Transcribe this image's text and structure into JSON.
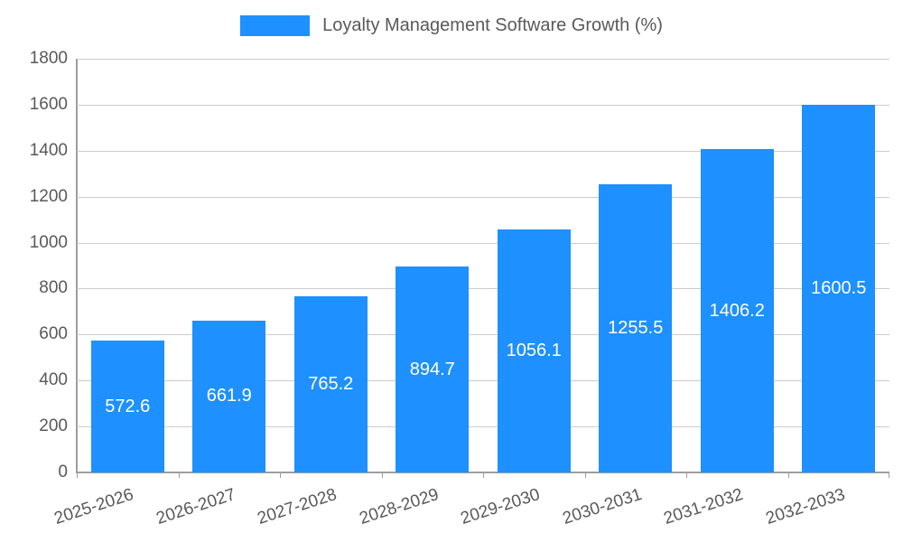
{
  "chart_data": {
    "type": "bar",
    "title": "Loyalty Management Software Growth (%)",
    "categories": [
      "2025-2026",
      "2026-2027",
      "2027-2028",
      "2028-2029",
      "2029-2030",
      "2030-2031",
      "2031-2032",
      "2032-2033"
    ],
    "values": [
      572.6,
      661.9,
      765.2,
      894.7,
      1056.1,
      1255.5,
      1406.2,
      1600.5
    ],
    "value_labels": [
      "572.6",
      "661.9",
      "765.2",
      "894.7",
      "1056.1",
      "1255.5",
      "1406.2",
      "1600.5"
    ],
    "xlabel": "",
    "ylabel": "",
    "ylim": [
      0,
      1800
    ],
    "ytick_step": 200,
    "ytick_labels": [
      "0",
      "200",
      "400",
      "600",
      "800",
      "1000",
      "1200",
      "1400",
      "1600",
      "1800"
    ],
    "legend_position": "top",
    "grid": true,
    "colors": {
      "bar": "#1e90ff",
      "bar_value_label": "#ffffff",
      "axis_text": "#595959",
      "gridline": "#cccccc",
      "axis_line": "#9e9e9e",
      "background": "#ffffff"
    }
  }
}
